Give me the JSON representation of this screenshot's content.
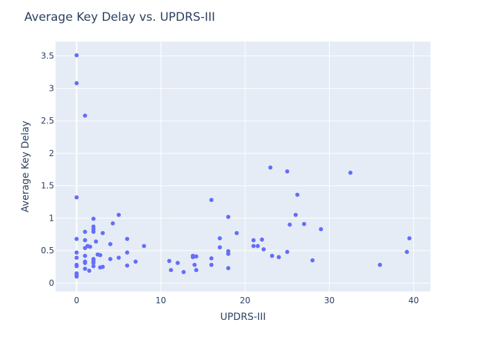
{
  "chart_data": {
    "type": "scatter",
    "title": "Average Key Delay vs. UPDRS-III",
    "xlabel": "UPDRS-III",
    "ylabel": "Average Key Delay",
    "xlim": [
      -2.5,
      42
    ],
    "ylim": [
      -0.13,
      3.72
    ],
    "xticks": [
      0,
      10,
      20,
      30,
      40
    ],
    "yticks": [
      0,
      0.5,
      1,
      1.5,
      2,
      2.5,
      3,
      3.5
    ],
    "xtick_labels": [
      "0",
      "10",
      "20",
      "30",
      "40"
    ],
    "ytick_labels": [
      "0",
      "0.5",
      "1",
      "1.5",
      "2",
      "2.5",
      "3",
      "3.5"
    ],
    "grid": true,
    "background": "#e5ecf6",
    "marker_color": "#636efa",
    "points": [
      {
        "x": 0,
        "y": 3.51
      },
      {
        "x": 0,
        "y": 3.08
      },
      {
        "x": 0,
        "y": 1.32
      },
      {
        "x": 0,
        "y": 0.68
      },
      {
        "x": 0,
        "y": 0.47
      },
      {
        "x": 0,
        "y": 0.39
      },
      {
        "x": 0,
        "y": 0.28
      },
      {
        "x": 0,
        "y": 0.26
      },
      {
        "x": 0,
        "y": 0.15
      },
      {
        "x": 0,
        "y": 0.12
      },
      {
        "x": 0,
        "y": 0.1
      },
      {
        "x": 1,
        "y": 2.58
      },
      {
        "x": 1,
        "y": 0.79
      },
      {
        "x": 1,
        "y": 0.66
      },
      {
        "x": 1,
        "y": 0.54
      },
      {
        "x": 1,
        "y": 0.42
      },
      {
        "x": 1,
        "y": 0.33
      },
      {
        "x": 1,
        "y": 0.31
      },
      {
        "x": 1,
        "y": 0.22
      },
      {
        "x": 1.3,
        "y": 0.57
      },
      {
        "x": 1.6,
        "y": 0.56
      },
      {
        "x": 1.5,
        "y": 0.19
      },
      {
        "x": 2,
        "y": 0.99
      },
      {
        "x": 2,
        "y": 0.87
      },
      {
        "x": 2,
        "y": 0.83
      },
      {
        "x": 2,
        "y": 0.79
      },
      {
        "x": 2,
        "y": 0.37
      },
      {
        "x": 2,
        "y": 0.34
      },
      {
        "x": 2,
        "y": 0.31
      },
      {
        "x": 2,
        "y": 0.26
      },
      {
        "x": 2.3,
        "y": 0.64
      },
      {
        "x": 2.5,
        "y": 0.44
      },
      {
        "x": 2.8,
        "y": 0.43
      },
      {
        "x": 2.8,
        "y": 0.24
      },
      {
        "x": 3.1,
        "y": 0.25
      },
      {
        "x": 3.1,
        "y": 0.77
      },
      {
        "x": 4,
        "y": 0.6
      },
      {
        "x": 4,
        "y": 0.37
      },
      {
        "x": 4.3,
        "y": 0.92
      },
      {
        "x": 5,
        "y": 1.05
      },
      {
        "x": 5,
        "y": 0.39
      },
      {
        "x": 6,
        "y": 0.68
      },
      {
        "x": 6,
        "y": 0.47
      },
      {
        "x": 6,
        "y": 0.27
      },
      {
        "x": 7,
        "y": 0.33
      },
      {
        "x": 8,
        "y": 0.57
      },
      {
        "x": 11,
        "y": 0.34
      },
      {
        "x": 11.2,
        "y": 0.2
      },
      {
        "x": 12,
        "y": 0.31
      },
      {
        "x": 12.7,
        "y": 0.17
      },
      {
        "x": 13.8,
        "y": 0.42
      },
      {
        "x": 13.8,
        "y": 0.4
      },
      {
        "x": 14,
        "y": 0.28
      },
      {
        "x": 14.2,
        "y": 0.41
      },
      {
        "x": 14.2,
        "y": 0.2
      },
      {
        "x": 16,
        "y": 1.28
      },
      {
        "x": 16,
        "y": 0.38
      },
      {
        "x": 16,
        "y": 0.28
      },
      {
        "x": 17,
        "y": 0.69
      },
      {
        "x": 17,
        "y": 0.55
      },
      {
        "x": 18,
        "y": 1.02
      },
      {
        "x": 18,
        "y": 0.49
      },
      {
        "x": 18,
        "y": 0.45
      },
      {
        "x": 18,
        "y": 0.23
      },
      {
        "x": 19,
        "y": 0.77
      },
      {
        "x": 21,
        "y": 0.66
      },
      {
        "x": 21,
        "y": 0.57
      },
      {
        "x": 21.5,
        "y": 0.57
      },
      {
        "x": 22,
        "y": 0.67
      },
      {
        "x": 22.2,
        "y": 0.52
      },
      {
        "x": 23,
        "y": 1.78
      },
      {
        "x": 23.2,
        "y": 0.42
      },
      {
        "x": 24,
        "y": 0.4
      },
      {
        "x": 25,
        "y": 1.72
      },
      {
        "x": 25,
        "y": 0.48
      },
      {
        "x": 25.3,
        "y": 0.9
      },
      {
        "x": 26,
        "y": 1.05
      },
      {
        "x": 26.2,
        "y": 1.36
      },
      {
        "x": 27,
        "y": 0.91
      },
      {
        "x": 28,
        "y": 0.35
      },
      {
        "x": 29,
        "y": 0.83
      },
      {
        "x": 32.5,
        "y": 1.7
      },
      {
        "x": 36,
        "y": 0.28
      },
      {
        "x": 39.2,
        "y": 0.48
      },
      {
        "x": 39.5,
        "y": 0.69
      }
    ]
  }
}
